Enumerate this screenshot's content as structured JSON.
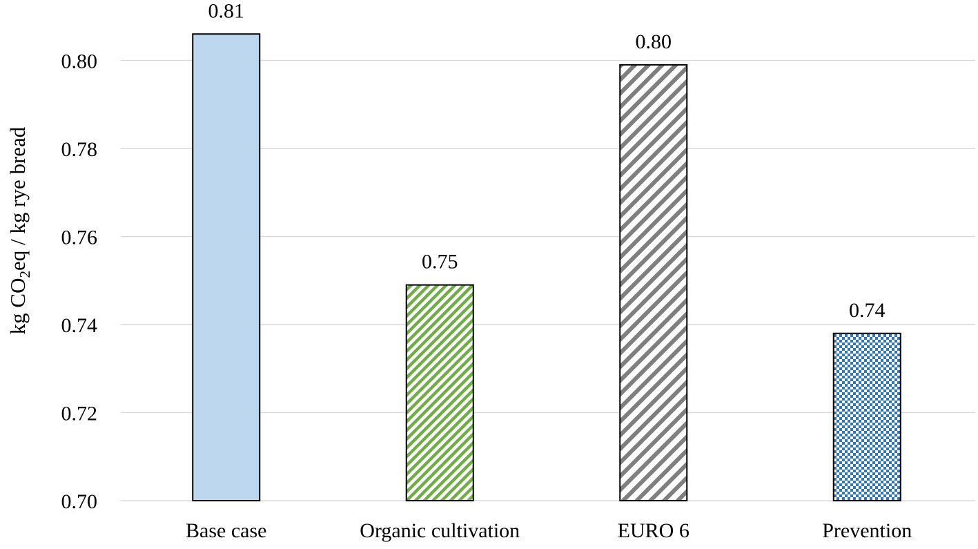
{
  "chart_data": {
    "type": "bar",
    "categories": [
      "Base case",
      "Organic cultivation",
      "EURO 6",
      "Prevention"
    ],
    "values": [
      0.806,
      0.749,
      0.799,
      0.738
    ],
    "data_labels": [
      "0.81",
      "0.75",
      "0.80",
      "0.74"
    ],
    "ylabel": {
      "prefix": "kg CO",
      "subscript": "2",
      "suffix": "eq / kg rye bread"
    },
    "ylim": [
      0.7,
      0.81
    ],
    "yticks": [
      0.7,
      0.72,
      0.74,
      0.76,
      0.78,
      0.8
    ],
    "ytick_labels": [
      "0.70",
      "0.72",
      "0.74",
      "0.76",
      "0.78",
      "0.80"
    ],
    "grid": true,
    "legend": "none",
    "bar_styles": [
      {
        "fill": "solid",
        "color": "#bdd7ee"
      },
      {
        "fill": "diagonal-stripes",
        "color": "#70ad47"
      },
      {
        "fill": "diagonal-stripes",
        "color": "#7f7f7f"
      },
      {
        "fill": "checker",
        "color": "#2e75b6"
      }
    ],
    "gridline_color": "#d9d9d9"
  }
}
